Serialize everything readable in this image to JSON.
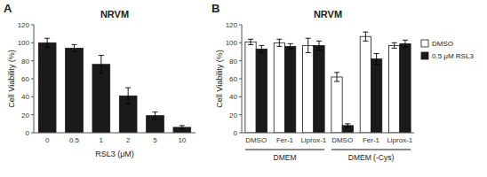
{
  "chart_data": [
    {
      "type": "bar",
      "panel": "A",
      "title": "NRVM",
      "xlabel": "RSL3 (μM)",
      "ylabel": "Cell Viability (%)",
      "categories": [
        "0",
        "0.5",
        "1",
        "2",
        "5",
        "10"
      ],
      "values": [
        100,
        94,
        76,
        41,
        19,
        6
      ],
      "errors": [
        5,
        4,
        10,
        9,
        4,
        2
      ],
      "color": "#1a1a1a",
      "ylim": [
        0,
        120
      ],
      "yticks": [
        0,
        20,
        40,
        60,
        80,
        100,
        120
      ],
      "grid": false
    },
    {
      "type": "bar",
      "panel": "B",
      "title": "NRVM",
      "ylabel": "Cell Viability (%)",
      "categories": [
        "DMSO",
        "Fer-1",
        "Liprox-1",
        "DMSO",
        "Fer-1",
        "Liprox-1"
      ],
      "annotations": [
        "DMEM",
        "DMEM (-Cys)"
      ],
      "series": [
        {
          "name": "DMSO",
          "color": "#ffffff",
          "values": [
            101,
            100,
            97,
            62,
            107,
            97
          ],
          "errors": [
            3,
            4,
            8,
            5,
            5,
            3
          ]
        },
        {
          "name": "0.5 μM RSL3",
          "color": "#1a1a1a",
          "values": [
            93,
            96,
            97,
            8,
            82,
            99
          ],
          "errors": [
            4,
            3,
            5,
            2,
            6,
            4
          ]
        }
      ],
      "ylim": [
        0,
        120
      ],
      "yticks": [
        0,
        20,
        40,
        60,
        80,
        100,
        120
      ],
      "grid": false,
      "legend": "right"
    }
  ]
}
